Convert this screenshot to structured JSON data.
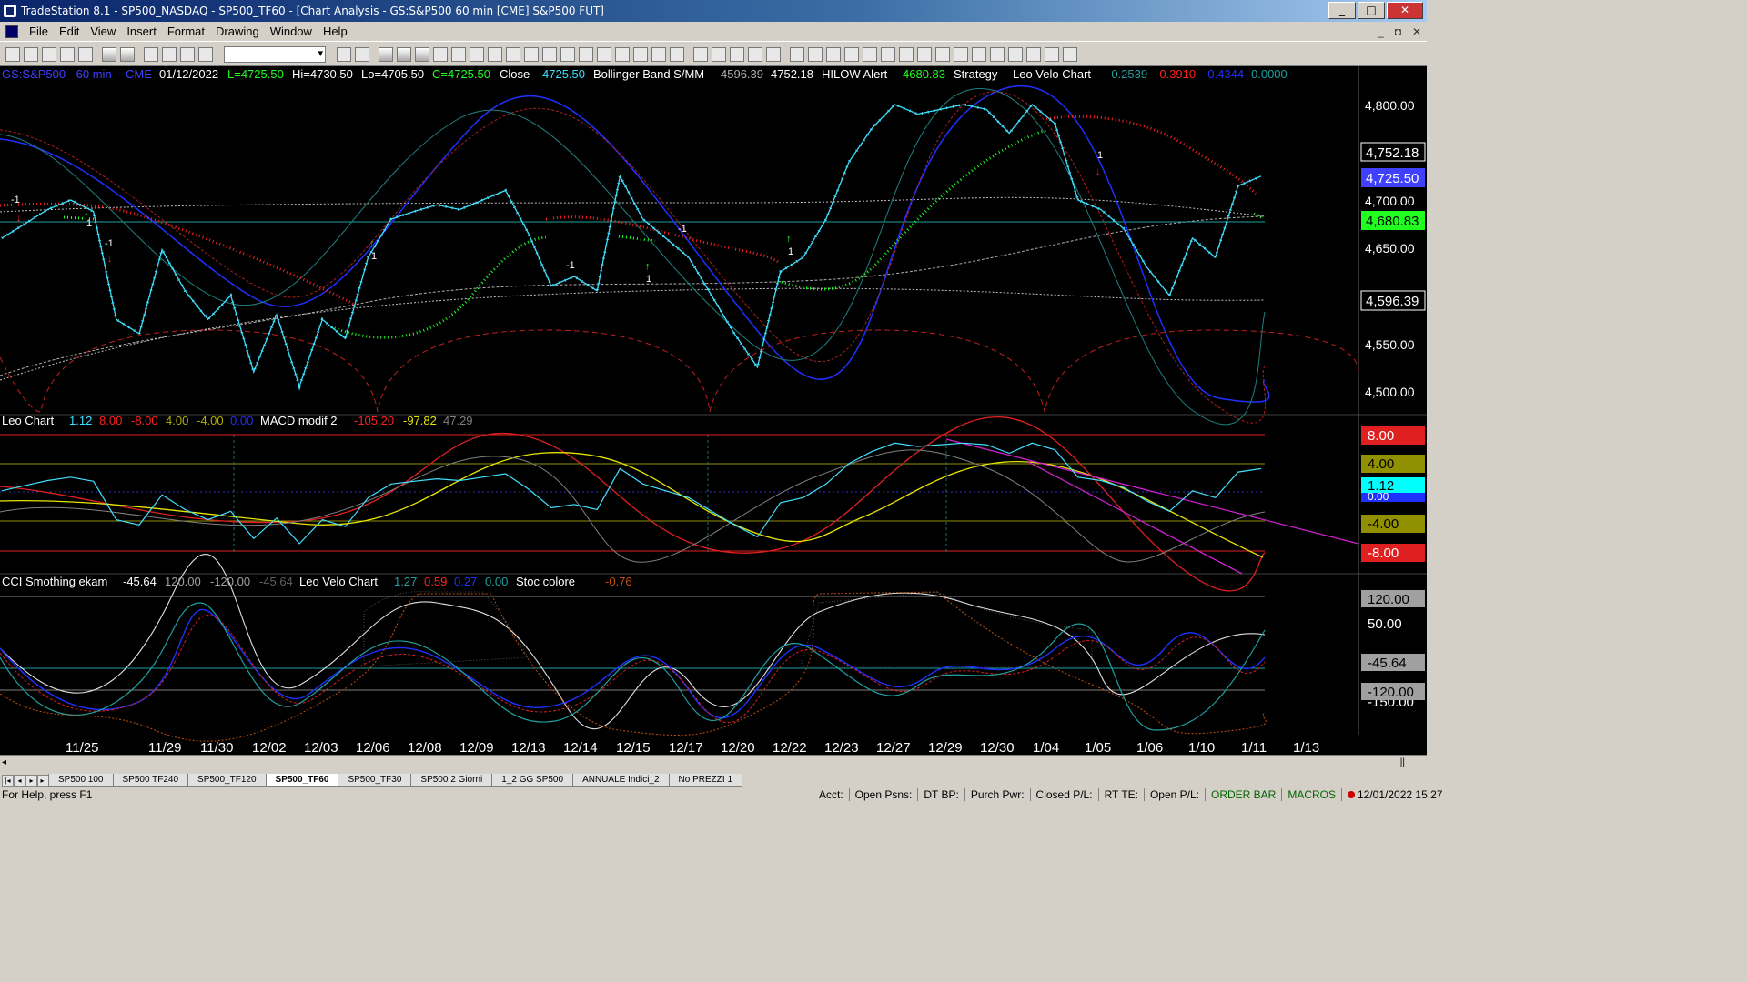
{
  "window": {
    "title": "TradeStation 8.1 - SP500_NASDAQ - SP500_TF60 - [Chart Analysis - GS:S&P500  60 min  [CME] S&P500 FUT]",
    "min": "_",
    "max": "□",
    "close": "✕"
  },
  "menu": [
    "File",
    "Edit",
    "View",
    "Insert",
    "Format",
    "Drawing",
    "Window",
    "Help"
  ],
  "doc_buttons": [
    "_",
    "◘",
    "✕"
  ],
  "price_panel": {
    "symbol": "GS:S&P500 - 60 min",
    "exchange": "CME",
    "date": "01/12/2022",
    "last": "L=4725.50",
    "hi": "Hi=4730.50",
    "lo": "Lo=4705.50",
    "close_c": "C=4725.50",
    "close_label": "Close",
    "close_val": "4725.50",
    "bb_label": "Bollinger Band S/MM",
    "bb_val1": "4596.39",
    "bb_val2": "4752.18",
    "hilow_label": "HILOW Alert",
    "hilow_val": "4680.83",
    "strategy_label": "Strategy",
    "leovelo_label": "Leo Velo Chart",
    "lv_v1": "-0.2539",
    "lv_v2": "-0.3910",
    "lv_v3": "-0.4344",
    "lv_v4": "0.0000",
    "axis": [
      "4,800.00",
      "4,700.00",
      "4,650.00",
      "4,550.00",
      "4,500.00"
    ],
    "axis_badges": {
      "bb_upper": "4,752.18",
      "close": "4,725.50",
      "hilow": "4,680.83",
      "bb_lower": "4,596.39"
    },
    "signal_labels": {
      "m1": "-1",
      "p1": "1"
    }
  },
  "leo_panel": {
    "title": "Leo Chart",
    "v1": "1.12",
    "v2": "8.00",
    "v3": "-8.00",
    "v4": "4.00",
    "v5": "-4.00",
    "v6": "0.00",
    "macd_label": "MACD modif 2",
    "m1": "-105.20",
    "m2": "-97.82",
    "m3": "47.29",
    "badges": {
      "b8": "8.00",
      "b4": "4.00",
      "b112": "1.12",
      "b000": "0.00",
      "bm4": "-4.00",
      "bm8": "-8.00"
    }
  },
  "cci_panel": {
    "title": "CCI Smothing ekam",
    "v1": "-45.64",
    "v2": "120.00",
    "v3": "-120.00",
    "v4": "-45.64",
    "leovelo_label": "Leo Velo Chart",
    "lv1": "1.27",
    "lv2": "0.59",
    "lv3": "0.27",
    "lv4": "0.00",
    "stoc_label": "Stoc colore",
    "stoc_val": "-0.76",
    "badges": {
      "b120": "120.00",
      "b50": "50.00",
      "bm45": "-45.64",
      "bm120": "-120.00",
      "bm150": "-150.00"
    }
  },
  "dates": [
    "11/25",
    "11/29",
    "11/30",
    "12/02",
    "12/03",
    "12/06",
    "12/08",
    "12/09",
    "12/13",
    "12/14",
    "12/15",
    "12/17",
    "12/20",
    "12/22",
    "12/23",
    "12/27",
    "12/29",
    "12/30",
    "1/04",
    "1/05",
    "1/06",
    "1/10",
    "1/11",
    "1/13"
  ],
  "tabs": [
    "SP500 100",
    "SP500 TF240",
    "SP500_TF120",
    "SP500_TF60",
    "SP500_TF30",
    "SP500 2 Giorni",
    "1_2 GG SP500",
    "ANNUALE Indici_2",
    "No PREZZI 1"
  ],
  "active_tab": "SP500_TF60",
  "status": {
    "help": "For Help, press F1",
    "acct": "Acct:",
    "open_psns": "Open Psns:",
    "dt_bp": "DT BP:",
    "purch_pwr": "Purch Pwr:",
    "closed_pl": "Closed P/L:",
    "rt_te": "RT TE:",
    "open_pl": "Open P/L:",
    "order_bar": "ORDER BAR",
    "macros": "MACROS",
    "datetime": "12/01/2022 15:27"
  },
  "colors": {
    "cyan": "#40e0ff",
    "red": "#ff2020",
    "green": "#20ff20",
    "blue": "#2030ff",
    "yellow": "#e6e600",
    "magenta": "#d020d0",
    "badge_blue": "#4040ff"
  },
  "chart_data": {
    "type": "line",
    "price_series": [
      4660,
      4675,
      4690,
      4700,
      4688,
      4575,
      4560,
      4648,
      4605,
      4575,
      4600,
      4520,
      4580,
      4505,
      4575,
      4555,
      4640,
      4680,
      4688,
      4695,
      4690,
      4700,
      4710,
      4665,
      4610,
      4620,
      4605,
      4725,
      4680,
      4660,
      4640,
      4600,
      4560,
      4525,
      4625,
      4640,
      4680,
      4740,
      4775,
      4800,
      4790,
      4795,
      4800,
      4795,
      4770,
      4800,
      4780,
      4700,
      4690,
      4670,
      4630,
      4600,
      4660,
      4640,
      4715,
      4725
    ],
    "price_ylim": [
      4470,
      4830
    ]
  }
}
